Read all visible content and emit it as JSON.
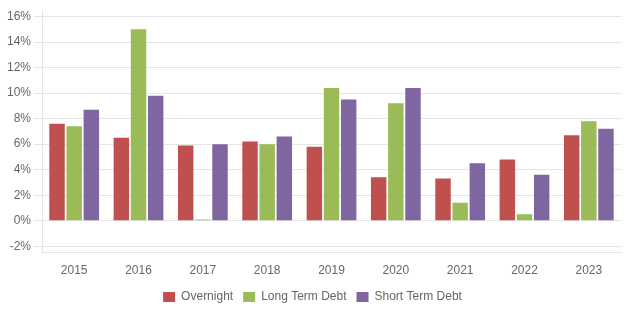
{
  "chart_data": {
    "type": "bar",
    "categories": [
      "2015",
      "2016",
      "2017",
      "2018",
      "2019",
      "2020",
      "2021",
      "2022",
      "2023"
    ],
    "series": [
      {
        "name": "Overnight",
        "color": "#C0504D",
        "values": [
          0.076,
          0.065,
          0.059,
          0.062,
          0.058,
          0.034,
          0.033,
          0.048,
          0.067
        ]
      },
      {
        "name": "Long Term Debt",
        "color": "#9BBB59",
        "values": [
          0.074,
          0.15,
          0.001,
          0.06,
          0.104,
          0.092,
          0.014,
          0.005,
          0.078
        ]
      },
      {
        "name": "Short Term Debt",
        "color": "#7F66A0",
        "values": [
          0.087,
          0.098,
          0.06,
          0.066,
          0.095,
          0.104,
          0.045,
          0.036,
          0.072
        ]
      }
    ],
    "ylim": [
      -0.025,
      0.165
    ],
    "yticks": [
      {
        "value": -0.02,
        "label": "-2%"
      },
      {
        "value": 0,
        "label": "0%"
      },
      {
        "value": 0.02,
        "label": "2%"
      },
      {
        "value": 0.04,
        "label": "4%"
      },
      {
        "value": 0.06,
        "label": "6%"
      },
      {
        "value": 0.08,
        "label": "8%"
      },
      {
        "value": 0.1,
        "label": "10%"
      },
      {
        "value": 0.12,
        "label": "12%"
      },
      {
        "value": 0.14,
        "label": "14%"
      },
      {
        "value": 0.16,
        "label": "16%"
      }
    ],
    "grid": true,
    "legend": "bottom"
  }
}
